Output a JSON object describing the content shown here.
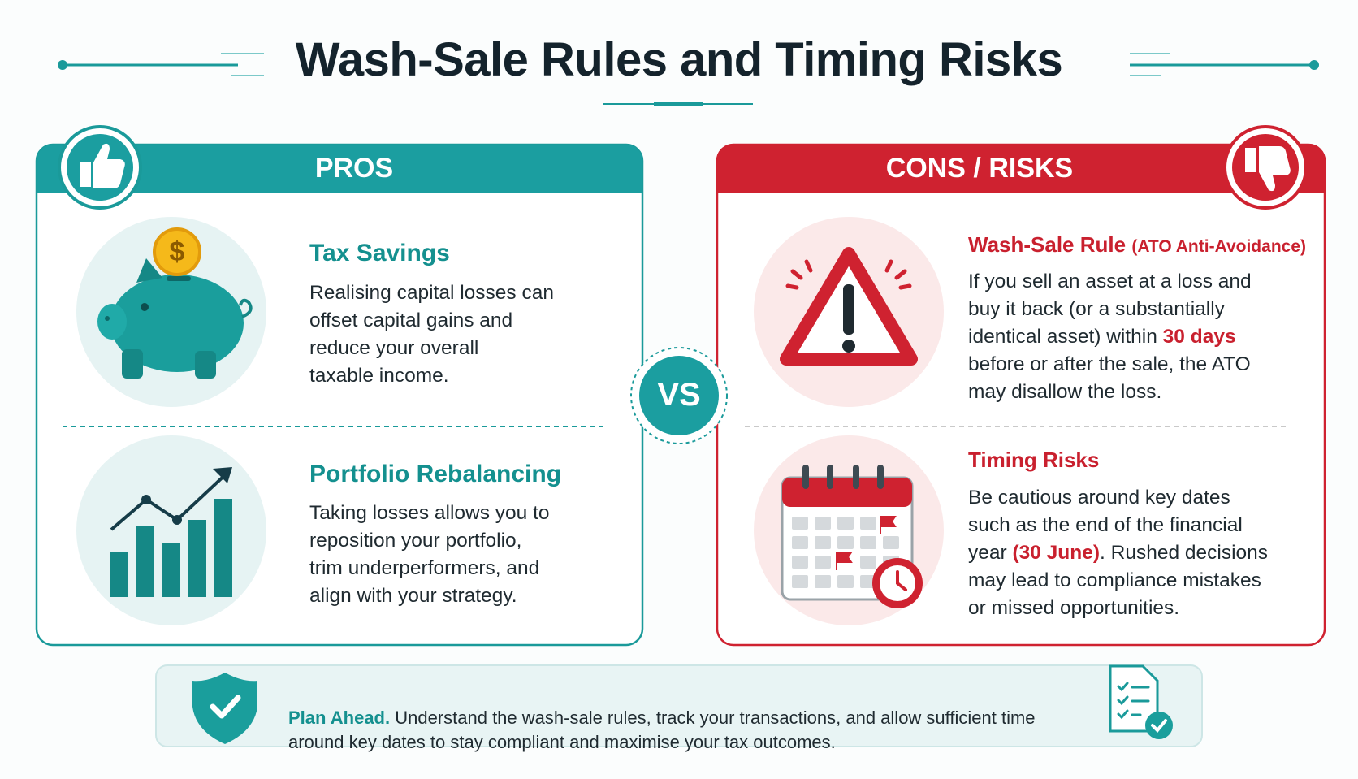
{
  "header": {
    "title": "Wash-Sale Rules and Timing Risks"
  },
  "pros": {
    "heading": "PROS",
    "items": [
      {
        "icon_text": "$",
        "title": "Tax Savings",
        "lines": [
          [
            "Realising capital losses can"
          ],
          [
            "offset capital gains and"
          ],
          [
            "reduce your overall"
          ],
          [
            "taxable income."
          ]
        ]
      },
      {
        "title": "Portfolio Rebalancing",
        "lines": [
          [
            "Taking losses allows you to"
          ],
          [
            "reposition your portfolio,"
          ],
          [
            "trim underperformers, and"
          ],
          [
            "align with your strategy."
          ]
        ]
      }
    ]
  },
  "vs": "VS",
  "cons": {
    "heading": "CONS / RISKS",
    "items": [
      {
        "title": "Wash-Sale Rule",
        "subtitle": "(ATO Anti-Avoidance)",
        "lines": [
          [
            "If you sell an asset at a loss and"
          ],
          [
            "buy it back (or a substantially"
          ],
          [
            "identical asset) within ",
            "30 days"
          ],
          [
            "before or after the sale, the ATO"
          ],
          [
            "may disallow the loss."
          ]
        ]
      },
      {
        "title": "Timing Risks",
        "lines": [
          [
            "Be cautious around key dates"
          ],
          [
            "such as the end of the financial"
          ],
          [
            "year ",
            "(30 June)",
            ". Rushed decisions"
          ],
          [
            "may lead to compliance mistakes"
          ],
          [
            "or missed opportunities."
          ]
        ]
      }
    ]
  },
  "footer": {
    "lead": "Plan Ahead.",
    "lines": [
      " Understand the wash-sale rules, track your transactions, and allow sufficient time",
      "around key dates to stay compliant and maximise your tax outcomes."
    ]
  }
}
